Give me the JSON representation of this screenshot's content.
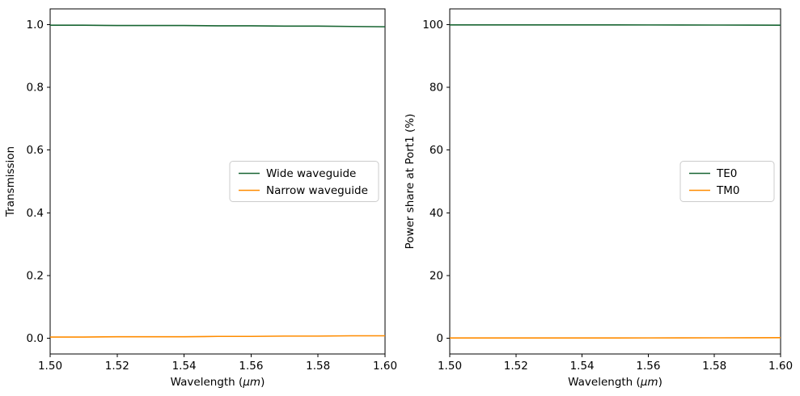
{
  "figure": {
    "background": "#ffffff"
  },
  "chart_data": [
    {
      "type": "line",
      "title": "",
      "xlabel": {
        "prefix": "Wavelength (",
        "italic": "μm",
        "suffix": ")"
      },
      "ylabel": "Transmission",
      "xlim": [
        1.5,
        1.6
      ],
      "ylim": [
        -0.05,
        1.05
      ],
      "grid": false,
      "legend_position": "center right",
      "xtick_labels": [
        "1.50",
        "1.52",
        "1.54",
        "1.56",
        "1.58",
        "1.60"
      ],
      "ytick_labels": [
        "0.0",
        "0.2",
        "0.4",
        "0.6",
        "0.8",
        "1.0"
      ],
      "x": [
        1.5,
        1.51,
        1.52,
        1.53,
        1.54,
        1.55,
        1.56,
        1.57,
        1.58,
        1.59,
        1.6
      ],
      "series": [
        {
          "name": "Wide waveguide",
          "color": "#186532",
          "values": [
            0.998,
            0.998,
            0.997,
            0.997,
            0.997,
            0.996,
            0.996,
            0.995,
            0.995,
            0.994,
            0.993
          ]
        },
        {
          "name": "Narrow waveguide",
          "color": "#ff8c00",
          "values": [
            0.004,
            0.004,
            0.005,
            0.005,
            0.005,
            0.006,
            0.006,
            0.007,
            0.007,
            0.008,
            0.008
          ]
        }
      ]
    },
    {
      "type": "line",
      "title": "",
      "xlabel": {
        "prefix": "Wavelength (",
        "italic": "μm",
        "suffix": ")"
      },
      "ylabel": "Power share at Port1 (%)",
      "xlim": [
        1.5,
        1.6
      ],
      "ylim": [
        -5,
        105
      ],
      "grid": false,
      "legend_position": "center right",
      "xtick_labels": [
        "1.50",
        "1.52",
        "1.54",
        "1.56",
        "1.58",
        "1.60"
      ],
      "ytick_labels": [
        "0",
        "20",
        "40",
        "60",
        "80",
        "100"
      ],
      "x": [
        1.5,
        1.51,
        1.52,
        1.53,
        1.54,
        1.55,
        1.56,
        1.57,
        1.58,
        1.59,
        1.6
      ],
      "series": [
        {
          "name": "TE0",
          "color": "#186532",
          "values": [
            99.9,
            99.9,
            99.9,
            99.9,
            99.9,
            99.9,
            99.88,
            99.87,
            99.85,
            99.83,
            99.8
          ]
        },
        {
          "name": "TM0",
          "color": "#ff8c00",
          "values": [
            0.1,
            0.1,
            0.1,
            0.1,
            0.1,
            0.1,
            0.12,
            0.13,
            0.15,
            0.17,
            0.2
          ]
        }
      ]
    }
  ]
}
